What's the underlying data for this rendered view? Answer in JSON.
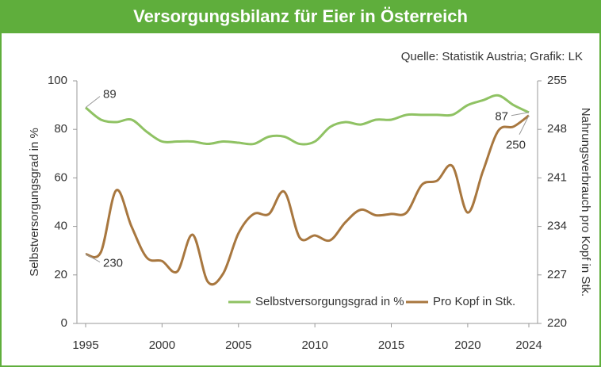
{
  "chart_data": {
    "type": "line",
    "title": "Versorgungsbilanz für Eier in Österreich",
    "source": "Quelle: Statistik Austria; Grafik: LK",
    "ylabel": "Selbstversorgungsgrad in %",
    "y2label": "Nahrungsverbrauch pro Kopf in Stk.",
    "x": [
      1995,
      1996,
      1997,
      1998,
      1999,
      2000,
      2001,
      2002,
      2003,
      2004,
      2005,
      2006,
      2007,
      2008,
      2009,
      2010,
      2011,
      2012,
      2013,
      2014,
      2015,
      2016,
      2017,
      2018,
      2019,
      2020,
      2021,
      2022,
      2023,
      2024
    ],
    "xlim": [
      1995,
      2024
    ],
    "xticks": [
      1995,
      2000,
      2005,
      2010,
      2015,
      2020,
      2024
    ],
    "ylim": [
      0,
      100
    ],
    "yticks": [
      0,
      20,
      40,
      60,
      80,
      100
    ],
    "y2lim": [
      220,
      255
    ],
    "y2ticks": [
      220,
      227,
      234,
      241,
      248,
      255
    ],
    "legend": "bottom",
    "series": [
      {
        "name": "Selbstversorgungsgrad in %",
        "color": "#8fc263",
        "values": [
          89,
          84,
          83,
          84,
          79,
          75,
          75,
          75,
          74,
          75,
          74.5,
          74,
          77,
          77,
          74,
          75,
          81,
          83,
          82,
          84,
          84,
          86,
          86,
          86,
          86,
          90,
          92,
          94,
          90,
          87
        ]
      },
      {
        "name": "Pro Kopf in Stk.",
        "color": "#a8773f",
        "axis": "y2",
        "values": [
          230,
          230.3,
          239.2,
          234,
          229.5,
          229,
          227.5,
          232.8,
          226,
          227.2,
          233,
          235.8,
          235.8,
          239,
          232.4,
          232.7,
          232,
          234.6,
          236.4,
          235.6,
          235.8,
          236,
          240,
          240.6,
          242.7,
          236,
          242,
          247.8,
          248.4,
          250
        ]
      }
    ]
  }
}
